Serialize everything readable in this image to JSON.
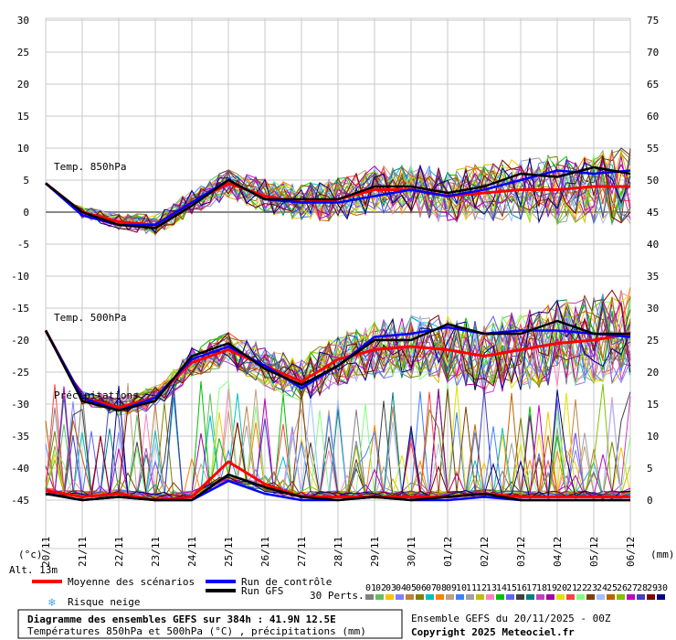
{
  "chart_data": {
    "type": "line",
    "x": [
      "20/11",
      "21/11",
      "22/11",
      "23/11",
      "24/11",
      "25/11",
      "26/11",
      "27/11",
      "28/11",
      "29/11",
      "30/11",
      "01/12",
      "02/12",
      "03/12",
      "04/12",
      "05/12",
      "06/12"
    ],
    "left_axis": {
      "unit": "(°c)",
      "ticks": [
        30,
        25,
        20,
        15,
        10,
        5,
        0,
        -5,
        -10,
        -15,
        -20,
        -25,
        -30,
        -35,
        -40,
        -45
      ],
      "ylim": [
        -45,
        30
      ]
    },
    "right_axis": {
      "unit": "(mm)",
      "ticks": [
        75,
        70,
        65,
        60,
        55,
        50,
        45,
        40,
        35,
        30,
        25,
        20,
        15,
        10,
        5,
        0
      ],
      "ylim": [
        0,
        75
      ]
    },
    "annotations": {
      "t850": "Temp. 850hPa",
      "t500": "Temp. 500hPa",
      "precip": "Précipitations",
      "alt": "Alt. 13m"
    },
    "series": [
      {
        "name": "Moyenne des scénarios",
        "color": "#ff0000",
        "group": "t850",
        "values": [
          4.5,
          0,
          -1.5,
          -2,
          1.5,
          4.5,
          2.5,
          1.5,
          2,
          3.5,
          3.5,
          2.5,
          3,
          3.5,
          3.5,
          4,
          4
        ]
      },
      {
        "name": "Run de contrôle",
        "color": "#0000ff",
        "group": "t850",
        "values": [
          4.5,
          -0.5,
          -2,
          -2,
          1.5,
          5,
          2,
          1.5,
          1.5,
          2.5,
          3.5,
          2.5,
          3.5,
          5,
          6.5,
          6,
          6.5
        ]
      },
      {
        "name": "Run GFS",
        "color": "#000000",
        "group": "t850",
        "values": [
          4.5,
          0,
          -2,
          -2.5,
          1,
          5,
          2,
          2,
          2,
          4,
          4,
          3,
          4,
          6,
          5.5,
          7,
          6
        ]
      },
      {
        "name": "Moyenne des scénarios",
        "color": "#ff0000",
        "group": "t500",
        "values": [
          -18.5,
          -29,
          -30.5,
          -29,
          -23.5,
          -21.5,
          -24,
          -26.5,
          -23,
          -21.5,
          -21,
          -21.5,
          -22.5,
          -21.5,
          -20.5,
          -20,
          -19
        ]
      },
      {
        "name": "Run de contrôle",
        "color": "#0000ff",
        "group": "t500",
        "values": [
          -18.5,
          -29,
          -31,
          -29,
          -23,
          -21,
          -24,
          -27.5,
          -24,
          -19.5,
          -19,
          -18,
          -19,
          -18.5,
          -18.5,
          -19,
          -19.5
        ]
      },
      {
        "name": "Run GFS",
        "color": "#000000",
        "group": "t500",
        "values": [
          -18.5,
          -29.5,
          -31,
          -29.5,
          -22.5,
          -20.5,
          -24.5,
          -27,
          -24,
          -20,
          -20,
          -17.5,
          -19,
          -19,
          -17,
          -19,
          -19
        ]
      },
      {
        "name": "Moyenne des scénarios",
        "color": "#ff0000",
        "group": "precip",
        "values": [
          1.5,
          0.5,
          1,
          0,
          0.5,
          6,
          2.5,
          0.5,
          0.5,
          0.5,
          0.5,
          0.5,
          1,
          0.5,
          0.5,
          0.5,
          0.5
        ]
      },
      {
        "name": "Run de contrôle",
        "color": "#0000ff",
        "group": "precip",
        "values": [
          1,
          0,
          0.5,
          0,
          0,
          3,
          1,
          0,
          0,
          0.5,
          0,
          0,
          0.5,
          0,
          0,
          0,
          0
        ]
      },
      {
        "name": "Run GFS",
        "color": "#000000",
        "group": "precip",
        "values": [
          1,
          0,
          0.5,
          0,
          0,
          4,
          2,
          0.5,
          0,
          0.5,
          0,
          0.5,
          1,
          0,
          0,
          0,
          0
        ]
      }
    ]
  },
  "legend": {
    "mean": "Moyenne des scénarios",
    "control": "Run de contrôle",
    "gfs": "Run GFS",
    "snow": "Risque neige",
    "perts_label": "30 Perts.",
    "perts": [
      "01",
      "02",
      "03",
      "04",
      "05",
      "06",
      "07",
      "08",
      "09",
      "10",
      "11",
      "12",
      "13",
      "14",
      "15",
      "16",
      "17",
      "18",
      "19",
      "20",
      "21",
      "22",
      "23",
      "24",
      "25",
      "26",
      "27",
      "28",
      "29",
      "30"
    ],
    "pert_colors": [
      "#808080",
      "#60c060",
      "#ffc000",
      "#8080ff",
      "#c08040",
      "#808000",
      "#00c0c0",
      "#ff8000",
      "#c0a080",
      "#4080ff",
      "#a0a0a0",
      "#c0c000",
      "#ff80c0",
      "#00c000",
      "#6060ff",
      "#404040",
      "#008080",
      "#c040c0",
      "#a000a0",
      "#e0e000",
      "#ff4040",
      "#80ff80",
      "#804000",
      "#a0c0ff",
      "#c06000",
      "#80c000",
      "#c000c0",
      "#4040c0",
      "#800000",
      "#000080"
    ],
    "color_mean": "#ff0000",
    "color_control": "#0000ff",
    "color_gfs": "#000000",
    "color_snow": "#4ba8e8"
  },
  "footer": {
    "title": "Diagramme des ensembles GEFS sur 384h : 41.9N 12.5E",
    "subtitle": "Températures 850hPa et 500hPa (°C) , précipitations (mm)",
    "run": "Ensemble GEFS du 20/11/2025 - 00Z",
    "copyright": "Copyright 2025 Meteociel.fr"
  }
}
